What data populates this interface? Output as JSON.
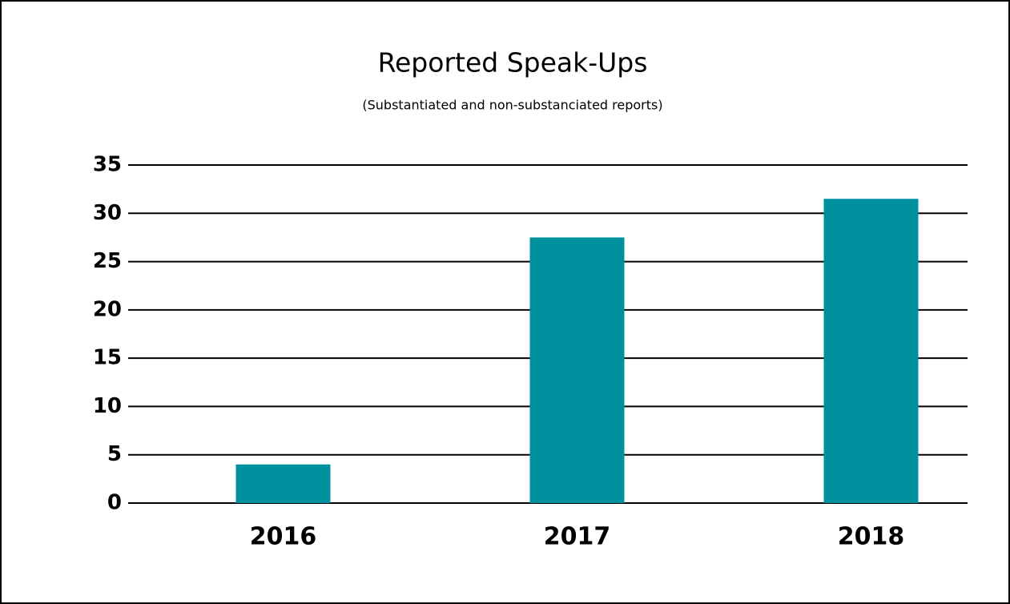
{
  "chart_data": {
    "type": "bar",
    "title": "Reported Speak-Ups",
    "subtitle": "(Substantiated and non-substanciated reports)",
    "categories": [
      "2016",
      "2017",
      "2018"
    ],
    "values": [
      4,
      27.5,
      31.5
    ],
    "color": "#00919e",
    "ylim": [
      0,
      35
    ],
    "yticks": [
      0,
      5,
      10,
      15,
      20,
      25,
      30,
      35
    ],
    "grid": true
  }
}
